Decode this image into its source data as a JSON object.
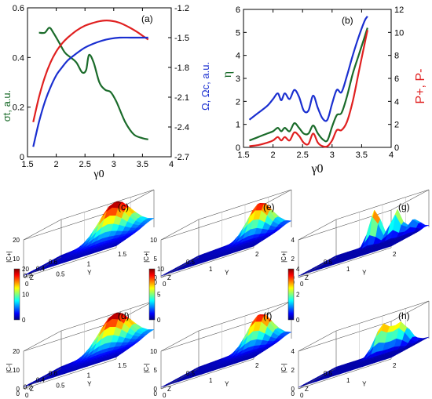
{
  "chart_data": [
    {
      "type": "line",
      "panel_label": "(a)",
      "xlabel": "γ0",
      "ylabel_left": "σt, a.u.",
      "ylabel_right": "Ω, Ωc, a.u.",
      "xlim": [
        1.5,
        4
      ],
      "ylim_left": [
        0,
        0.6
      ],
      "ylim_right": [
        -2.7,
        -1.2
      ],
      "x_ticks": [
        "1.5",
        "2",
        "2.5",
        "3",
        "3.5",
        "4"
      ],
      "y_ticks_left": [
        "0",
        "0.2",
        "0.4",
        "0.6"
      ],
      "y_ticks_right": [
        "-2.7",
        "-2.4",
        "-2.1",
        "-1.8",
        "-1.5",
        "-1.2"
      ],
      "series": [
        {
          "axis": "left",
          "color": "#1a6b2a",
          "x": [
            1.7,
            1.8,
            1.88,
            1.95,
            2.05,
            2.15,
            2.25,
            2.35,
            2.45,
            2.52,
            2.57,
            2.65,
            2.75,
            2.85,
            2.95,
            3.05,
            3.2,
            3.35,
            3.5,
            3.6
          ],
          "y": [
            0.5,
            0.5,
            0.52,
            0.5,
            0.46,
            0.42,
            0.4,
            0.38,
            0.34,
            0.35,
            0.41,
            0.38,
            0.3,
            0.27,
            0.26,
            0.22,
            0.14,
            0.09,
            0.075,
            0.07
          ]
        },
        {
          "axis": "right",
          "color": "#e02020",
          "x": [
            1.6,
            1.7,
            1.8,
            1.9,
            2.0,
            2.1,
            2.2,
            2.35,
            2.5,
            2.65,
            2.8,
            2.95,
            3.1,
            3.25,
            3.4,
            3.5,
            3.6
          ],
          "y": [
            -2.35,
            -2.1,
            -1.9,
            -1.75,
            -1.64,
            -1.56,
            -1.5,
            -1.43,
            -1.38,
            -1.35,
            -1.33,
            -1.33,
            -1.35,
            -1.39,
            -1.44,
            -1.48,
            -1.52
          ]
        },
        {
          "axis": "right",
          "color": "#1a2fd0",
          "x": [
            1.6,
            1.7,
            1.8,
            1.9,
            2.0,
            2.1,
            2.2,
            2.35,
            2.5,
            2.65,
            2.8,
            2.95,
            3.1,
            3.3,
            3.5,
            3.6
          ],
          "y": [
            -2.6,
            -2.35,
            -2.15,
            -2.0,
            -1.88,
            -1.8,
            -1.73,
            -1.66,
            -1.6,
            -1.56,
            -1.53,
            -1.51,
            -1.5,
            -1.5,
            -1.5,
            -1.5
          ]
        }
      ]
    },
    {
      "type": "line",
      "panel_label": "(b)",
      "xlabel": "γ0",
      "ylabel_left": "η",
      "ylabel_right": "P+, P-",
      "xlim": [
        1.5,
        4
      ],
      "ylim_left": [
        0,
        6
      ],
      "ylim_right": [
        0,
        12
      ],
      "x_ticks": [
        "1.5",
        "2",
        "2.5",
        "3",
        "3.5",
        "4"
      ],
      "y_ticks_left": [
        "0",
        "1",
        "2",
        "3",
        "4",
        "5",
        "6"
      ],
      "y_ticks_right": [
        "0",
        "2",
        "4",
        "6",
        "8",
        "10",
        "12"
      ],
      "series": [
        {
          "axis": "left",
          "color": "#1a2fd0",
          "x": [
            1.6,
            1.75,
            1.9,
            2.0,
            2.08,
            2.14,
            2.2,
            2.28,
            2.36,
            2.44,
            2.52,
            2.6,
            2.68,
            2.76,
            2.84,
            2.92,
            3.0,
            3.08,
            3.16,
            3.25,
            3.35,
            3.45,
            3.55,
            3.6
          ],
          "y": [
            1.2,
            1.5,
            1.8,
            2.1,
            2.35,
            2.05,
            2.35,
            2.1,
            2.5,
            2.2,
            1.6,
            1.6,
            2.25,
            1.7,
            1.25,
            1.2,
            1.9,
            2.5,
            2.4,
            3.1,
            4.0,
            4.8,
            5.5,
            5.7
          ]
        },
        {
          "axis": "left",
          "color": "#1a6b2a",
          "x": [
            1.6,
            1.75,
            1.9,
            2.0,
            2.08,
            2.14,
            2.2,
            2.28,
            2.36,
            2.44,
            2.52,
            2.6,
            2.68,
            2.76,
            2.84,
            2.92,
            3.0,
            3.08,
            3.16,
            3.25,
            3.35,
            3.45,
            3.55,
            3.6
          ],
          "y": [
            0.3,
            0.45,
            0.6,
            0.7,
            0.85,
            0.7,
            0.85,
            0.7,
            1.05,
            0.85,
            0.6,
            0.6,
            0.95,
            0.6,
            0.35,
            0.3,
            0.9,
            1.4,
            1.5,
            2.2,
            3.2,
            4.0,
            4.8,
            5.2
          ]
        },
        {
          "axis": "right",
          "color": "#e02020",
          "x": [
            1.6,
            1.75,
            1.9,
            2.0,
            2.08,
            2.14,
            2.2,
            2.28,
            2.36,
            2.44,
            2.52,
            2.6,
            2.68,
            2.76,
            2.84,
            2.92,
            3.0,
            3.08,
            3.16,
            3.25,
            3.35,
            3.45,
            3.55,
            3.6
          ],
          "y": [
            0.1,
            0.2,
            0.4,
            0.6,
            0.9,
            0.6,
            0.9,
            0.6,
            1.3,
            1.0,
            0.4,
            0.3,
            1.2,
            0.4,
            0.1,
            0.1,
            0.6,
            1.5,
            1.5,
            2.2,
            4.0,
            6.5,
            9.0,
            10.2
          ]
        }
      ]
    },
    {
      "type": "surface",
      "panel_label": "(c)",
      "zlabel": "|C+|",
      "xaxis_label": "Z",
      "yaxis_label": "Y",
      "zlim": [
        0,
        20
      ],
      "z_ticks": [
        "0",
        "10",
        "20"
      ],
      "x_ticks": [
        "0",
        "0.2",
        "0.4",
        "0.6"
      ],
      "y_ticks": [
        "0",
        "0.5",
        "1",
        "1.5"
      ]
    },
    {
      "type": "surface",
      "panel_label": "(d)",
      "zlabel": "|C-|",
      "xaxis_label": "Z",
      "yaxis_label": "Y",
      "zlim": [
        0,
        20
      ],
      "z_ticks": [
        "0",
        "10",
        "20"
      ],
      "x_ticks": [
        "0",
        "0.2",
        "0.4",
        "0.6"
      ],
      "y_ticks": [
        "0",
        "0.5",
        "1",
        "1.5"
      ]
    },
    {
      "type": "surface",
      "panel_label": "(e)",
      "zlabel": "|C+|",
      "xaxis_label": "Z",
      "yaxis_label": "Y",
      "zlim": [
        0,
        10
      ],
      "z_ticks": [
        "0",
        "5",
        "10"
      ],
      "x_ticks": [
        "0",
        "0.5"
      ],
      "y_ticks": [
        "0",
        "1",
        "2"
      ]
    },
    {
      "type": "surface",
      "panel_label": "(f)",
      "zlabel": "|C-|",
      "xaxis_label": "Z",
      "yaxis_label": "Y",
      "zlim": [
        0,
        10
      ],
      "z_ticks": [
        "0",
        "5",
        "10"
      ],
      "x_ticks": [
        "0",
        "0.5"
      ],
      "y_ticks": [
        "0",
        "1",
        "2"
      ]
    },
    {
      "type": "surface",
      "panel_label": "(g)",
      "zlabel": "|C+|",
      "xaxis_label": "Z",
      "yaxis_label": "Y",
      "zlim": [
        0,
        4
      ],
      "z_ticks": [
        "0",
        "2",
        "4"
      ],
      "x_ticks": [
        "0",
        "0.5"
      ],
      "y_ticks": [
        "0",
        "1",
        "2"
      ]
    },
    {
      "type": "surface",
      "panel_label": "(h)",
      "zlabel": "|C-|",
      "xaxis_label": "Z",
      "yaxis_label": "Y",
      "zlim": [
        0,
        4
      ],
      "z_ticks": [
        "0",
        "2",
        "4"
      ],
      "x_ticks": [
        "0",
        "0.5"
      ],
      "y_ticks": [
        "0",
        "1",
        "2"
      ]
    }
  ],
  "colorbars": [
    {
      "ticks": [
        "0",
        "10",
        "20"
      ]
    },
    {
      "ticks": [
        "0",
        "5",
        "10"
      ]
    },
    {
      "ticks": [
        "0",
        "2",
        "4"
      ]
    }
  ]
}
